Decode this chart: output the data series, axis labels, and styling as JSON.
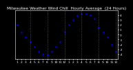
{
  "title": "Milwaukee Weather Wind Chill  Hourly Average  (24 Hours)",
  "title_fontsize": 4.2,
  "hours": [
    1,
    2,
    3,
    4,
    5,
    6,
    7,
    8,
    9,
    10,
    11,
    12,
    13,
    14,
    15,
    16,
    17,
    18,
    19,
    20,
    21,
    22,
    23,
    24
  ],
  "values": [
    2,
    0.5,
    -0.5,
    -1.5,
    -2.5,
    -3.5,
    -4,
    -4.2,
    -3.5,
    -2.5,
    -1.5,
    0.5,
    2,
    3,
    3.8,
    4.2,
    4.3,
    4,
    3.2,
    1.5,
    0.5,
    -0.5,
    -2,
    -3.5
  ],
  "line_color": "#0000cc",
  "marker_size": 1.8,
  "background_color": "#000000",
  "plot_bg_color": "#000000",
  "grid_color": "#666666",
  "text_color": "#ffffff",
  "ylim": [
    -5,
    5
  ],
  "yticks": [
    -4,
    -3,
    -2,
    -1,
    0,
    1,
    2,
    3,
    4
  ],
  "ytick_labels": [
    "-4",
    "-3",
    "-2",
    "-1",
    "0",
    "1",
    "2",
    "3",
    "4"
  ],
  "vgrid_positions": [
    4,
    8,
    12,
    16,
    20,
    24
  ],
  "tick_fontsize": 3.2,
  "xlim": [
    0.5,
    24.5
  ]
}
